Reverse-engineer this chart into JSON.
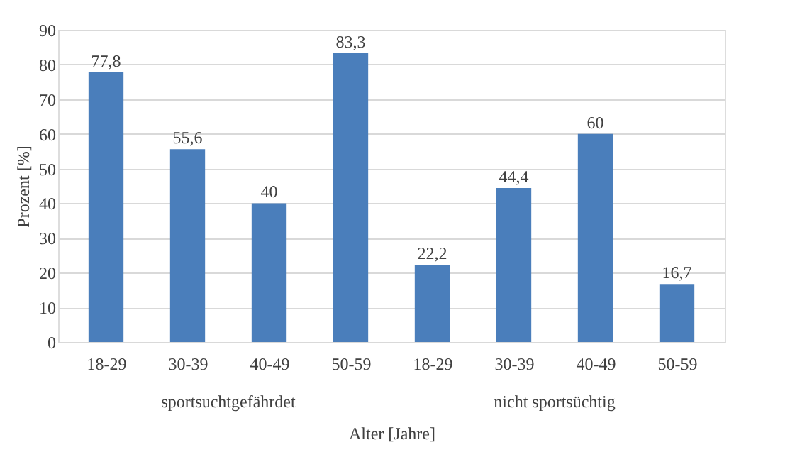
{
  "chart_data": {
    "type": "bar",
    "categories": [
      "18-29",
      "30-39",
      "40-49",
      "50-59",
      "18-29",
      "30-39",
      "40-49",
      "50-59"
    ],
    "values": [
      77.8,
      55.6,
      40,
      83.3,
      22.2,
      44.4,
      60,
      16.7
    ],
    "color": "#4a7ebb",
    "ylim": [
      0,
      90
    ],
    "yticks": [
      0,
      10,
      20,
      30,
      40,
      50,
      60,
      70,
      80,
      90
    ],
    "grid": "y",
    "xlabel": "Alter [Jahre]",
    "ylabel": "Prozent [%]",
    "annotations": [
      "sportsuchtgefährdet",
      "nicht sportsüchtig"
    ],
    "value_labels": [
      "77,8",
      "55,6",
      "40",
      "83,3",
      "22,2",
      "44,4",
      "60",
      "16,7"
    ]
  }
}
